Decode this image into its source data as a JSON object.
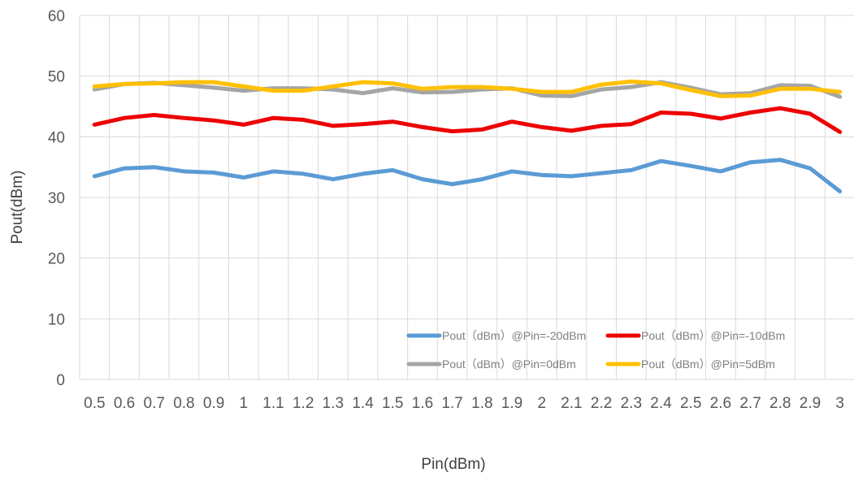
{
  "chart_data": {
    "type": "line",
    "xlabel": "Pin(dBm)",
    "ylabel": "Pout(dBm)",
    "ylim": [
      0,
      60
    ],
    "yticks": [
      0,
      10,
      20,
      30,
      40,
      50,
      60
    ],
    "grid": true,
    "legend_position": "bottom-right",
    "categories": [
      "0.5",
      "0.6",
      "0.7",
      "0.8",
      "0.9",
      "1",
      "1.1",
      "1.2",
      "1.3",
      "1.4",
      "1.5",
      "1.6",
      "1.7",
      "1.8",
      "1.9",
      "2",
      "2.1",
      "2.2",
      "2.3",
      "2.4",
      "2.5",
      "2.6",
      "2.7",
      "2.8",
      "2.9",
      "3"
    ],
    "series": [
      {
        "name": "Pout（dBm）@Pin=-20dBm",
        "color": "#5b9bd5",
        "values": [
          33.5,
          34.8,
          35.0,
          34.3,
          34.1,
          33.3,
          34.3,
          33.9,
          33.0,
          33.9,
          34.5,
          33.0,
          32.2,
          33.0,
          34.3,
          33.7,
          33.5,
          34.0,
          34.5,
          36.0,
          35.2,
          34.3,
          35.8,
          36.2,
          34.8,
          31.0
        ]
      },
      {
        "name": "Pout（dBm）@Pin=-10dBm",
        "color": "#ee0000",
        "values": [
          42.0,
          43.1,
          43.6,
          43.1,
          42.7,
          42.0,
          43.1,
          42.8,
          41.8,
          42.1,
          42.5,
          41.6,
          40.9,
          41.2,
          42.5,
          41.6,
          41.0,
          41.8,
          42.1,
          44.0,
          43.8,
          43.0,
          44.0,
          44.7,
          43.8,
          40.8
        ]
      },
      {
        "name": "Pout（dBm）@Pin=0dBm",
        "color": "#a5a5a5",
        "values": [
          47.8,
          48.7,
          48.9,
          48.5,
          48.1,
          47.6,
          48.0,
          48.0,
          47.8,
          47.2,
          48.0,
          47.3,
          47.4,
          47.8,
          48.0,
          46.8,
          46.7,
          47.8,
          48.2,
          49.0,
          48.1,
          47.0,
          47.2,
          48.5,
          48.4,
          46.6
        ]
      },
      {
        "name": "Pout（dBm）@Pin=5dBm",
        "color": "#ffc000",
        "values": [
          48.3,
          48.7,
          48.8,
          49.0,
          49.0,
          48.3,
          47.6,
          47.6,
          48.3,
          49.0,
          48.8,
          47.9,
          48.2,
          48.2,
          47.9,
          47.4,
          47.4,
          48.6,
          49.1,
          48.8,
          47.7,
          46.7,
          46.8,
          47.9,
          47.9,
          47.4
        ]
      }
    ]
  }
}
